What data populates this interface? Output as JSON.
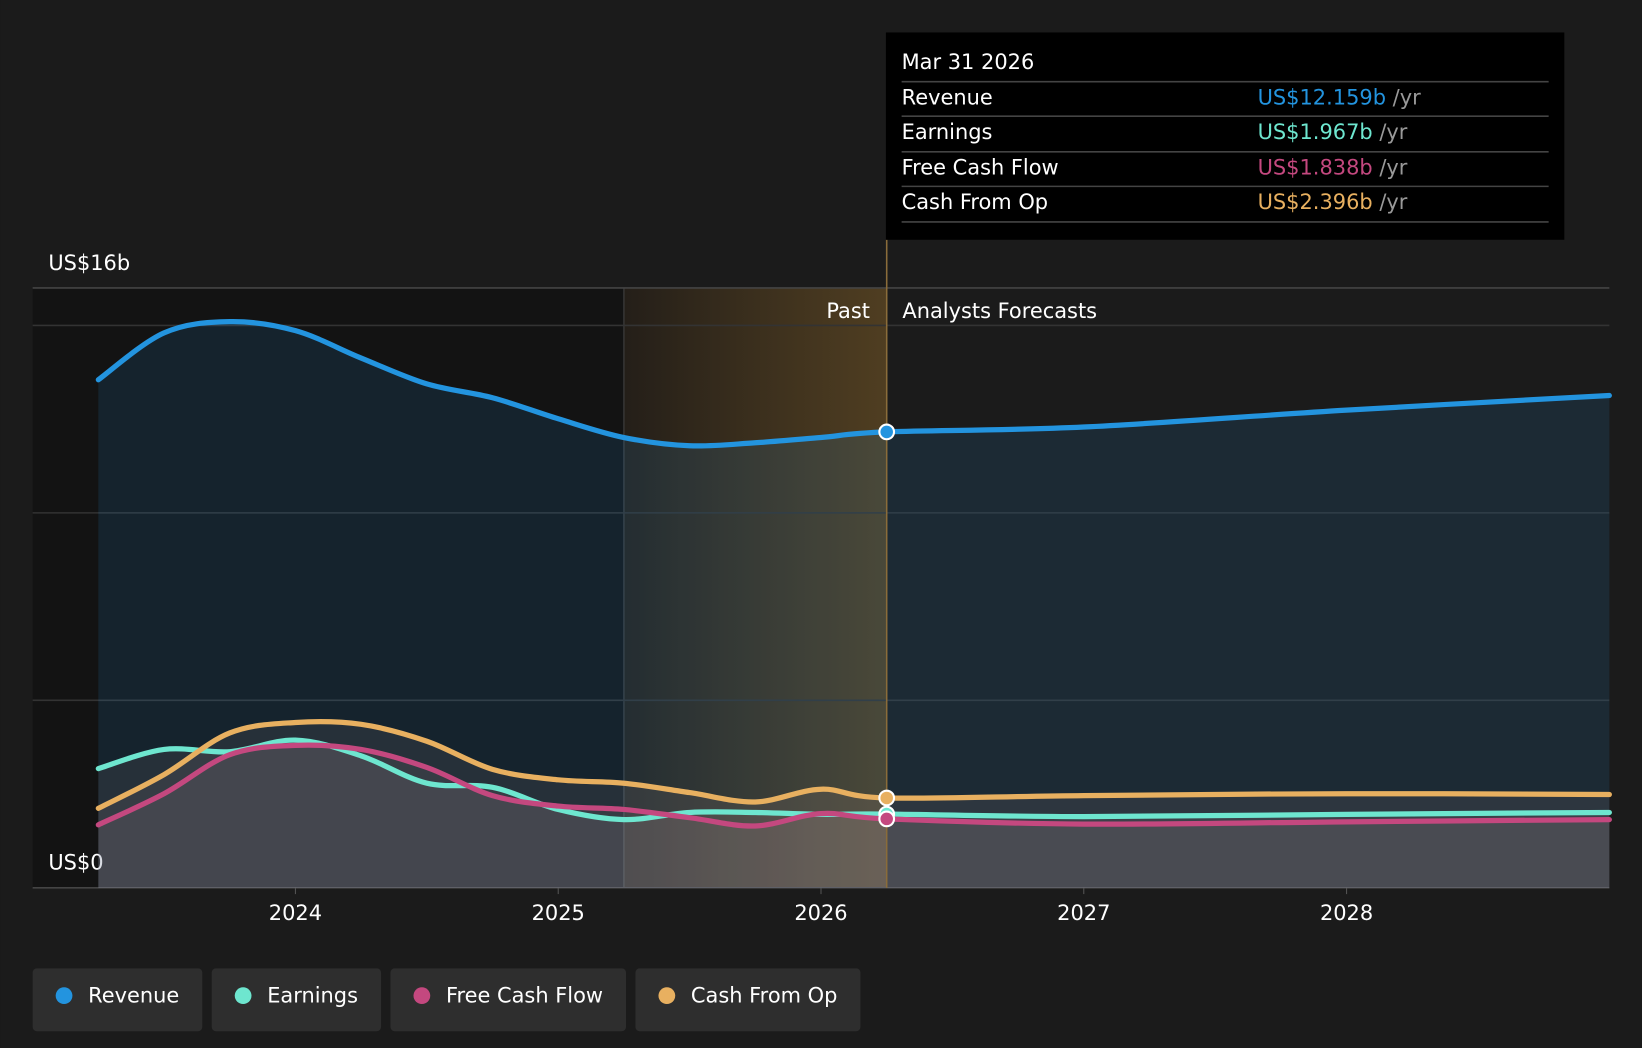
{
  "chart_data": {
    "type": "line",
    "x": [
      2023.25,
      2023.5,
      2023.75,
      2024.0,
      2024.25,
      2024.5,
      2024.75,
      2025.0,
      2025.25,
      2025.5,
      2025.75,
      2026.0,
      2026.25,
      2027.0,
      2028.0,
      2029.0
    ],
    "series": [
      {
        "name": "Revenue",
        "color": "#2394df",
        "values": [
          13.55,
          14.8,
          15.1,
          14.86,
          14.13,
          13.44,
          13.07,
          12.51,
          12.01,
          11.79,
          11.87,
          12.01,
          12.159,
          12.29,
          12.74,
          13.13
        ]
      },
      {
        "name": "Earnings",
        "color": "#6ee6cf",
        "values": [
          3.18,
          3.69,
          3.63,
          3.94,
          3.52,
          2.79,
          2.68,
          2.09,
          1.82,
          2.01,
          2.01,
          1.96,
          1.967,
          1.9,
          1.96,
          2.01
        ]
      },
      {
        "name": "Free Cash Flow",
        "color": "#c4487f",
        "values": [
          1.68,
          2.51,
          3.55,
          3.8,
          3.69,
          3.21,
          2.46,
          2.18,
          2.09,
          1.87,
          1.65,
          1.98,
          1.838,
          1.7,
          1.76,
          1.82
        ]
      },
      {
        "name": "Cash From Op",
        "color": "#e8b060",
        "values": [
          2.12,
          3.02,
          4.13,
          4.41,
          4.36,
          3.91,
          3.16,
          2.88,
          2.79,
          2.54,
          2.29,
          2.63,
          2.396,
          2.46,
          2.51,
          2.49
        ]
      }
    ],
    "xlim": [
      2023,
      2029
    ],
    "xticks": [
      2024,
      2025,
      2026,
      2027,
      2028
    ],
    "ylim": [
      0,
      16
    ],
    "yticks": [
      {
        "value": 0,
        "label": "US$0"
      },
      {
        "value": 16,
        "label": "US$16b"
      }
    ],
    "gridlines": [
      5,
      10,
      15
    ],
    "highlight_range": [
      2025.25,
      2026.25
    ],
    "past_label": "Past",
    "forecast_label": "Analysts Forecasts",
    "tooltip": {
      "title": "Mar 31 2026",
      "rows": [
        {
          "label": "Revenue",
          "value": "US$12.159b",
          "unit": "/yr"
        },
        {
          "label": "Earnings",
          "value": "US$1.967b",
          "unit": "/yr"
        },
        {
          "label": "Free Cash Flow",
          "value": "US$1.838b",
          "unit": "/yr"
        },
        {
          "label": "Cash From Op",
          "value": "US$2.396b",
          "unit": "/yr"
        }
      ]
    }
  }
}
